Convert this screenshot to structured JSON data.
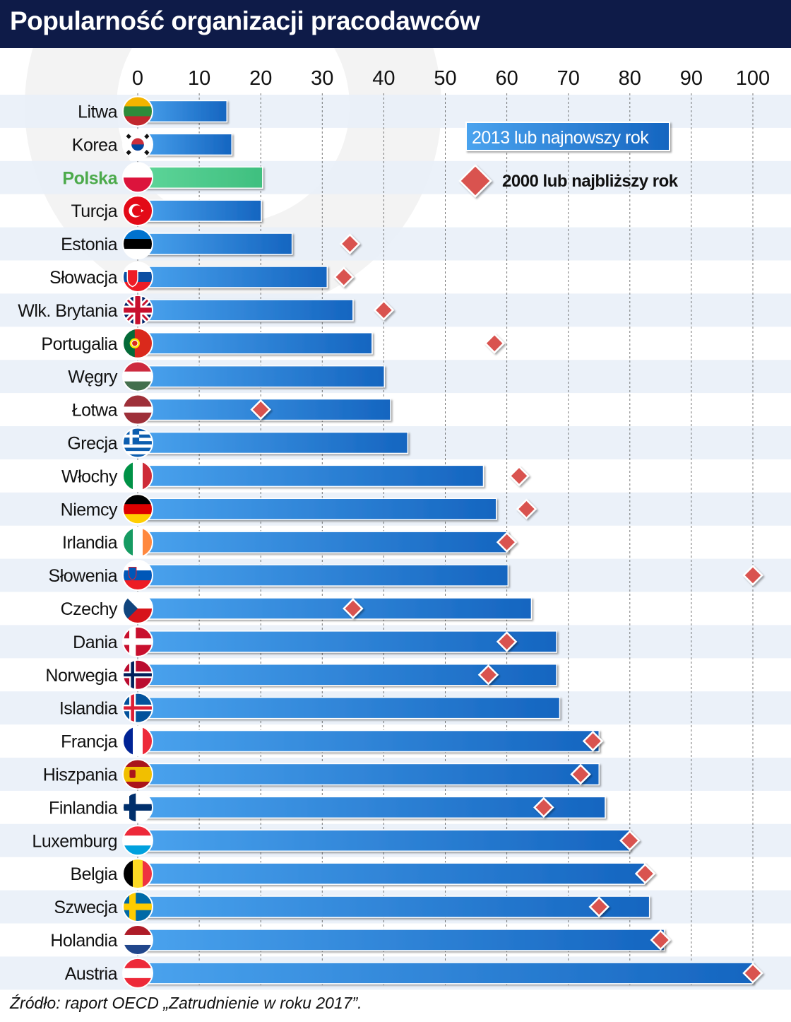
{
  "title": "Popularność organizacji pracodawców",
  "source": "Źródło: raport OECD „Zatrudnienie w roku 2017”.",
  "colors": {
    "header_bg": "#0e1b48",
    "bar_blue_light": "#4aa3ee",
    "bar_blue_dark": "#1565c0",
    "bar_highlight": "#4cc98a",
    "highlight_label": "#4caa4c",
    "marker": "#d9534f",
    "row_stripe": "#e8eef8"
  },
  "chart_data": {
    "type": "bar",
    "orientation": "horizontal",
    "xlim": [
      0,
      100
    ],
    "xticks": [
      0,
      10,
      20,
      30,
      40,
      50,
      60,
      70,
      80,
      90,
      100
    ],
    "grid": true,
    "legend_placement": "top-right",
    "highlight_category": "Polska",
    "categories": [
      "Litwa",
      "Korea",
      "Polska",
      "Turcja",
      "Estonia",
      "Słowacja",
      "Wlk. Brytania",
      "Portugalia",
      "Węgry",
      "Łotwa",
      "Grecja",
      "Włochy",
      "Niemcy",
      "Irlandia",
      "Słowenia",
      "Czechy",
      "Dania",
      "Norwegia",
      "Islandia",
      "Francja",
      "Hiszpania",
      "Finlandia",
      "Luxemburg",
      "Belgia",
      "Szwecja",
      "Holandia",
      "Austria"
    ],
    "series": [
      {
        "name": "2013 lub najnowszy rok",
        "kind": "bar",
        "values": [
          14.5,
          15.3,
          20.3,
          20.1,
          25.1,
          30.8,
          35.0,
          38.1,
          40.1,
          41.1,
          43.9,
          56.2,
          58.3,
          60.2,
          60.2,
          64.0,
          68.1,
          68.1,
          68.6,
          75.0,
          75.0,
          76.0,
          80.0,
          82.4,
          83.2,
          85.6,
          100.0
        ]
      },
      {
        "name": "2000 lub najbliższy rok",
        "kind": "marker",
        "values": [
          null,
          null,
          null,
          null,
          34.5,
          33.5,
          40.0,
          58.0,
          null,
          20.0,
          null,
          62.0,
          63.2,
          60.0,
          100.0,
          35.0,
          60.0,
          57.0,
          null,
          74.0,
          72.0,
          66.0,
          80.0,
          82.5,
          75.0,
          85.0,
          100.0
        ]
      }
    ],
    "flags": [
      "lithuania",
      "korea",
      "poland",
      "turkey",
      "estonia",
      "slovakia",
      "uk",
      "portugal",
      "hungary",
      "latvia",
      "greece",
      "italy",
      "germany",
      "ireland",
      "slovenia",
      "czechia",
      "denmark",
      "norway",
      "iceland",
      "france",
      "spain",
      "finland",
      "luxembourg",
      "belgium",
      "sweden",
      "netherlands",
      "austria"
    ]
  }
}
